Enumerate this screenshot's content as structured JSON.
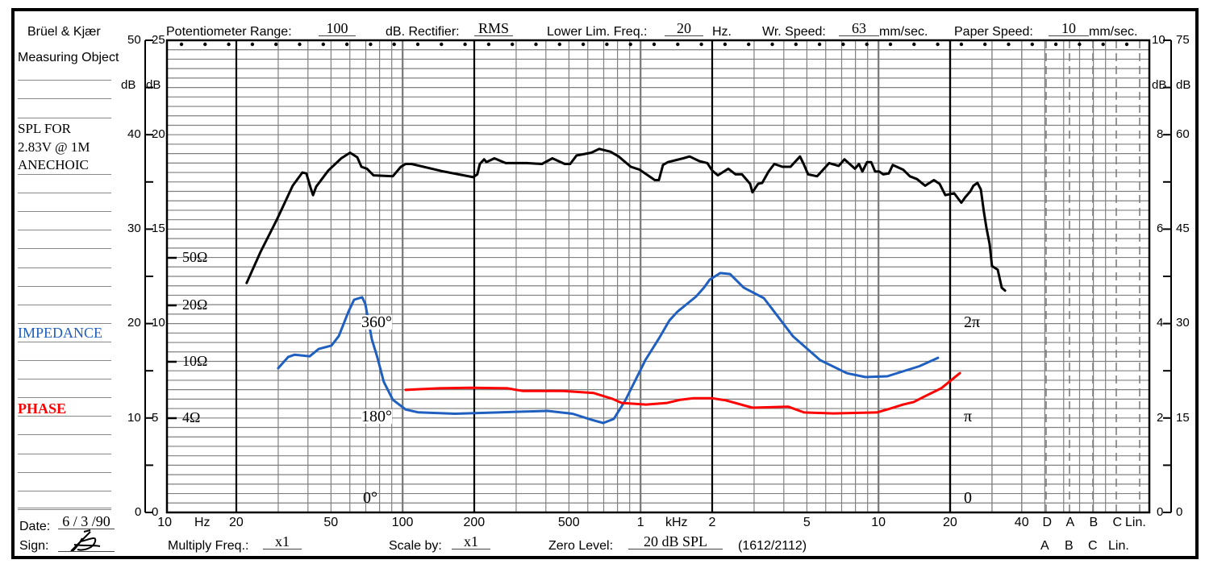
{
  "form": {
    "brand": "Brüel & Kjær",
    "measuring_object_label": "Measuring Object",
    "measuring_object_lines": [
      "SPL FOR",
      "2.83V @ 1M",
      "ANECHOIC"
    ],
    "impedance_label": "IMPEDANCE",
    "phase_label": "PHASE",
    "date_label": "Date:",
    "date_value": "6 / 3 /90",
    "sign_label": "Sign:",
    "sign_value": "AS",
    "potentiometer_label": "Potentiometer Range:",
    "potentiometer_value": "100",
    "rectifier_label": "dB. Rectifier:",
    "rectifier_value": "RMS",
    "lower_lim_label": "Lower Lim. Freq.:",
    "lower_lim_value": "20",
    "lower_lim_unit": "Hz.",
    "wr_speed_label": "Wr. Speed:",
    "wr_speed_value": "63",
    "wr_speed_unit": "mm/sec.",
    "paper_speed_label": "Paper Speed:",
    "paper_speed_value": "10",
    "paper_speed_unit": "mm/sec.",
    "multiply_label": "Multiply Freq.:",
    "multiply_value": "x1",
    "scale_by_label": "Scale by:",
    "scale_by_value": "x1",
    "zero_level_label": "Zero Level:",
    "zero_level_value": "20 dB SPL",
    "form_number": "(1612/2112)",
    "weighting_bottom": [
      "A",
      "B",
      "C",
      "Lin."
    ]
  },
  "colors": {
    "spl": "#000000",
    "impedance": "#1f5fbf",
    "phase": "#ff0000",
    "impedance_label": "#1f5fbf",
    "phase_label": "#ff0000",
    "grid": "#808080"
  },
  "chart_data": {
    "type": "line",
    "title": "SPL FOR 2.83V @ 1M ANECHOIC",
    "xlabel": "Hz",
    "x_scale": "log",
    "xlim": [
      10,
      40000
    ],
    "x_tick_labels": [
      {
        "f": 10,
        "label": "10"
      },
      {
        "f": 20,
        "label": "20"
      },
      {
        "f": 50,
        "label": "50"
      },
      {
        "f": 100,
        "label": "100"
      },
      {
        "f": 200,
        "label": "200"
      },
      {
        "f": 500,
        "label": "500"
      },
      {
        "f": 1000,
        "label": "1"
      },
      {
        "f": 2000,
        "label": "2"
      },
      {
        "f": 5000,
        "label": "5"
      },
      {
        "f": 10000,
        "label": "10"
      },
      {
        "f": 20000,
        "label": "20"
      },
      {
        "f": 40000,
        "label": "40"
      }
    ],
    "x_unit_labels": {
      "hz": "Hz",
      "khz": "kHz"
    },
    "weighting_labels": [
      "D",
      "A",
      "B",
      "C",
      "Lin."
    ],
    "left_axis_outer": {
      "ticks": [
        50,
        40,
        30,
        20,
        10,
        0
      ],
      "unit": "dB"
    },
    "left_axis_inner": {
      "ticks": [
        25,
        20,
        15,
        10,
        5,
        0
      ],
      "unit": "dB"
    },
    "right_axis_inner": {
      "ticks": [
        10,
        8,
        6,
        4,
        2,
        0
      ],
      "unit": "dB"
    },
    "right_axis_outer": {
      "ticks": [
        75,
        60,
        45,
        30,
        15,
        0
      ],
      "unit": "dB"
    },
    "ylim": [
      0,
      50
    ],
    "ylabel": "dB",
    "impedance_axis": {
      "ticks": [
        {
          "ohm": 50,
          "label": "50Ω"
        },
        {
          "ohm": 20,
          "label": "20Ω"
        },
        {
          "ohm": 10,
          "label": "10Ω"
        },
        {
          "ohm": 4,
          "label": "4Ω"
        }
      ]
    },
    "phase_axis": {
      "ticks": [
        {
          "deg": 360,
          "label": "360°",
          "alt": "2π"
        },
        {
          "deg": 180,
          "label": "180°",
          "alt": "π"
        },
        {
          "deg": 0,
          "label": "0°",
          "alt": "0"
        }
      ]
    },
    "grid": true,
    "series": [
      {
        "name": "SPL",
        "unit": "dB",
        "axis": "left_outer",
        "points": [
          [
            22.1,
            24.3
          ],
          [
            25.3,
            27.6
          ],
          [
            29.6,
            31.0
          ],
          [
            34.5,
            34.6
          ],
          [
            37.9,
            36.0
          ],
          [
            39.4,
            35.9
          ],
          [
            41,
            34.4
          ],
          [
            42,
            33.6
          ],
          [
            43.3,
            34.5
          ],
          [
            48.7,
            36.2
          ],
          [
            55.2,
            37.5
          ],
          [
            60.1,
            38.1
          ],
          [
            64.5,
            37.6
          ],
          [
            67.1,
            36.6
          ],
          [
            70.8,
            36.4
          ],
          [
            75.4,
            35.7
          ],
          [
            90.9,
            35.6
          ],
          [
            98.3,
            36.6
          ],
          [
            103,
            36.9
          ],
          [
            109,
            36.9
          ],
          [
            149,
            36.1
          ],
          [
            198,
            35.5
          ],
          [
            206,
            35.8
          ],
          [
            211,
            36.9
          ],
          [
            220,
            37.4
          ],
          [
            225,
            37.1
          ],
          [
            243,
            37.5
          ],
          [
            271,
            37.0
          ],
          [
            332,
            37.0
          ],
          [
            385,
            36.9
          ],
          [
            426,
            37.5
          ],
          [
            480,
            36.9
          ],
          [
            506,
            36.9
          ],
          [
            538,
            37.8
          ],
          [
            621,
            38.1
          ],
          [
            670,
            38.5
          ],
          [
            748,
            38.2
          ],
          [
            809,
            37.7
          ],
          [
            910,
            36.6
          ],
          [
            991,
            36.3
          ],
          [
            1148,
            35.2
          ],
          [
            1194,
            35.2
          ],
          [
            1242,
            36.8
          ],
          [
            1303,
            37.1
          ],
          [
            1510,
            37.5
          ],
          [
            1607,
            37.7
          ],
          [
            1766,
            37.2
          ],
          [
            1908,
            37.0
          ],
          [
            2000,
            36.2
          ],
          [
            2113,
            35.7
          ],
          [
            2338,
            36.4
          ],
          [
            2508,
            35.8
          ],
          [
            2628,
            35.8
          ],
          [
            2668,
            35.8
          ],
          [
            2886,
            34.8
          ],
          [
            2952,
            33.9
          ],
          [
            3120,
            34.8
          ],
          [
            3244,
            34.9
          ],
          [
            3452,
            36.1
          ],
          [
            3648,
            36.9
          ],
          [
            3944,
            36.6
          ],
          [
            4266,
            36.6
          ],
          [
            4678,
            37.7
          ],
          [
            4864,
            36.8
          ],
          [
            5058,
            35.8
          ],
          [
            5520,
            35.6
          ],
          [
            6200,
            37.0
          ],
          [
            6808,
            36.7
          ],
          [
            7194,
            37.4
          ],
          [
            7960,
            36.4
          ],
          [
            8280,
            36.9
          ],
          [
            8552,
            36.1
          ],
          [
            8954,
            37.1
          ],
          [
            9312,
            37.1
          ],
          [
            9680,
            36.1
          ],
          [
            10070,
            36.1
          ],
          [
            10472,
            35.8
          ],
          [
            11040,
            35.9
          ],
          [
            11480,
            36.8
          ],
          [
            12700,
            36.3
          ],
          [
            13552,
            35.6
          ],
          [
            14520,
            35.3
          ],
          [
            15700,
            34.6
          ],
          [
            17100,
            35.2
          ],
          [
            18060,
            34.8
          ],
          [
            19100,
            33.6
          ],
          [
            20800,
            33.8
          ],
          [
            22300,
            32.8
          ],
          [
            23180,
            33.4
          ],
          [
            24320,
            34.0
          ],
          [
            25060,
            34.6
          ],
          [
            26060,
            34.9
          ],
          [
            26920,
            34.2
          ],
          [
            27740,
            31.8
          ],
          [
            28440,
            30.1
          ],
          [
            29320,
            28.4
          ],
          [
            30000,
            26.1
          ],
          [
            31700,
            25.7
          ],
          [
            32960,
            23.8
          ],
          [
            34040,
            23.5
          ]
        ]
      },
      {
        "name": "IMPEDANCE",
        "unit": "ohm",
        "axis": "impedance",
        "points": [
          [
            30.0,
            9.0
          ],
          [
            33.0,
            10.6
          ],
          [
            35.1,
            10.9
          ],
          [
            40.7,
            10.7
          ],
          [
            44.4,
            11.7
          ],
          [
            50.2,
            12.2
          ],
          [
            53.9,
            13.7
          ],
          [
            59.2,
            18.5
          ],
          [
            62.5,
            22.3
          ],
          [
            67.6,
            23.4
          ],
          [
            69.7,
            20.6
          ],
          [
            74.2,
            13.2
          ],
          [
            78.4,
            10.5
          ],
          [
            83.4,
            7.2
          ],
          [
            90.9,
            5.4
          ],
          [
            103,
            4.6
          ],
          [
            116,
            4.4
          ],
          [
            166,
            4.3
          ],
          [
            259,
            4.4
          ],
          [
            407,
            4.5
          ],
          [
            518,
            4.3
          ],
          [
            621,
            3.9
          ],
          [
            697,
            3.7
          ],
          [
            771,
            3.95
          ],
          [
            861,
            5.3
          ],
          [
            1030,
            9.7
          ],
          [
            1047,
            10.2
          ],
          [
            1194,
            13.3
          ],
          [
            1321,
            16.6
          ],
          [
            1429,
            18.5
          ],
          [
            1710,
            23.7
          ],
          [
            1849,
            28.2
          ],
          [
            1954,
            32.9
          ],
          [
            2163,
            37.3
          ],
          [
            2376,
            36.6
          ],
          [
            2712,
            28.2
          ],
          [
            3296,
            23.0
          ],
          [
            3648,
            18.5
          ],
          [
            4366,
            13.7
          ],
          [
            5688,
            10.2
          ],
          [
            7362,
            8.3
          ],
          [
            8810,
            7.8
          ],
          [
            10890,
            7.9
          ],
          [
            14860,
            9.3
          ],
          [
            17780,
            10.5
          ]
        ]
      },
      {
        "name": "PHASE",
        "unit": "deg",
        "axis": "phase",
        "points": [
          [
            103,
            234
          ],
          [
            143,
            237
          ],
          [
            192,
            238
          ],
          [
            275,
            237
          ],
          [
            319,
            232
          ],
          [
            472,
            232
          ],
          [
            635,
            228
          ],
          [
            760,
            217
          ],
          [
            834,
            209
          ],
          [
            1054,
            206
          ],
          [
            1292,
            209
          ],
          [
            1463,
            215
          ],
          [
            1671,
            218
          ],
          [
            2000,
            218
          ],
          [
            2284,
            214
          ],
          [
            2952,
            200
          ],
          [
            4168,
            202
          ],
          [
            4864,
            191
          ],
          [
            6442,
            189
          ],
          [
            9840,
            191
          ],
          [
            11140,
            198
          ],
          [
            12700,
            206
          ],
          [
            14060,
            211
          ],
          [
            15700,
            222
          ],
          [
            18360,
            237
          ],
          [
            21980,
            266
          ]
        ]
      }
    ]
  }
}
